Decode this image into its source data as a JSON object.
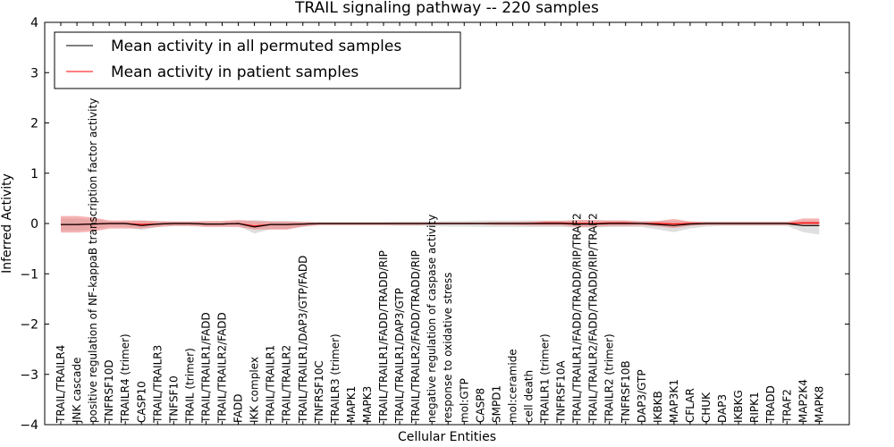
{
  "chart_data": {
    "type": "line",
    "title": "TRAIL signaling pathway -- 220 samples",
    "xlabel": "Cellular Entities",
    "ylabel": "Inferred Activity",
    "ylim": [
      -4,
      4
    ],
    "yticks": [
      "4",
      "3",
      "2",
      "1",
      "0",
      "−1",
      "−2",
      "−3",
      "−4"
    ],
    "grid": false,
    "legend_position": "top-left",
    "categories": [
      "TRAIL/TRAILR4",
      "JNK cascade",
      "positive regulation of NF-kappaB transcription factor activity",
      "TNFRSF10D",
      "TRAILR4 (trimer)",
      "CASP10",
      "TRAIL/TRAILR3",
      "TNFSF10",
      "TRAIL (trimer)",
      "TRAIL/TRAILR1/FADD",
      "TRAIL/TRAILR2/FADD",
      "FADD",
      "IKK complex",
      "TRAIL/TRAILR1",
      "TRAIL/TRAILR2",
      "TRAIL/TRAILR1/DAP3/GTP/FADD",
      "TNFRSF10C",
      "TRAILR3 (trimer)",
      "MAPK1",
      "MAPK3",
      "TRAIL/TRAILR1/FADD/TRADD/RIP",
      "TRAIL/TRAILR1/DAP3/GTP",
      "TRAIL/TRAILR2/FADD/TRADD/RIP",
      "negative regulation of caspase activity",
      "response to oxidative stress",
      "mol:GTP",
      "CASP8",
      "SMPD1",
      "mol:ceramide",
      "cell death",
      "TRAILR1 (trimer)",
      "TNFRSF10A",
      "TRAIL/TRAILR1/FADD/TRADD/RIP/TRAF2",
      "TRAIL/TRAILR2/FADD/TRADD/RIP/TRAF2",
      "TRAILR2 (trimer)",
      "TNFRSF10B",
      "DAP3/GTP",
      "IKBKB",
      "MAP3K1",
      "CFLAR",
      "CHUK",
      "DAP3",
      "IKBKG",
      "RIPK1",
      "TRADD",
      "TRAF2",
      "MAP2K4",
      "MAPK8"
    ],
    "series": [
      {
        "name": "Mean activity in all permuted samples",
        "color": "#000000",
        "values": [
          -0.02,
          -0.02,
          -0.01,
          0.0,
          0.0,
          -0.04,
          -0.01,
          0.0,
          0.0,
          -0.01,
          -0.01,
          0.0,
          -0.07,
          -0.02,
          -0.02,
          -0.01,
          0.0,
          0.0,
          0.0,
          0.0,
          0.0,
          0.0,
          0.0,
          0.0,
          0.0,
          0.0,
          0.0,
          0.0,
          0.0,
          0.0,
          0.0,
          0.0,
          -0.01,
          -0.01,
          0.0,
          0.0,
          0.0,
          -0.02,
          -0.04,
          -0.01,
          0.0,
          0.0,
          0.0,
          0.0,
          0.0,
          0.0,
          -0.04,
          -0.04
        ],
        "upper": [
          0.1,
          0.1,
          0.08,
          0.04,
          0.04,
          0.06,
          0.04,
          0.04,
          0.04,
          0.04,
          0.04,
          0.05,
          0.07,
          0.05,
          0.05,
          0.04,
          0.03,
          0.03,
          0.03,
          0.03,
          0.03,
          0.04,
          0.04,
          0.04,
          0.05,
          0.05,
          0.06,
          0.06,
          0.06,
          0.06,
          0.06,
          0.06,
          0.06,
          0.06,
          0.06,
          0.06,
          0.05,
          0.05,
          0.05,
          0.04,
          0.04,
          0.04,
          0.04,
          0.04,
          0.04,
          0.04,
          0.05,
          0.05
        ],
        "lower": [
          -0.14,
          -0.14,
          -0.12,
          -0.06,
          -0.06,
          -0.13,
          -0.07,
          -0.05,
          -0.05,
          -0.05,
          -0.05,
          -0.05,
          -0.2,
          -0.11,
          -0.11,
          -0.07,
          -0.04,
          -0.04,
          -0.04,
          -0.04,
          -0.04,
          -0.05,
          -0.05,
          -0.05,
          -0.06,
          -0.06,
          -0.07,
          -0.07,
          -0.07,
          -0.07,
          -0.07,
          -0.07,
          -0.08,
          -0.08,
          -0.07,
          -0.07,
          -0.07,
          -0.12,
          -0.17,
          -0.1,
          -0.06,
          -0.05,
          -0.05,
          -0.05,
          -0.05,
          -0.05,
          -0.17,
          -0.22
        ]
      },
      {
        "name": "Mean activity in patient samples",
        "color": "#ff0000",
        "band_color": "#f08080",
        "values": [
          -0.02,
          -0.02,
          -0.01,
          0.0,
          0.0,
          -0.02,
          -0.01,
          0.0,
          0.0,
          -0.01,
          -0.01,
          0.0,
          -0.05,
          -0.02,
          -0.02,
          -0.01,
          0.0,
          0.0,
          0.0,
          0.0,
          0.0,
          0.0,
          0.0,
          0.0,
          0.0,
          0.0,
          0.0,
          0.0,
          0.0,
          0.0,
          0.01,
          0.01,
          0.0,
          0.0,
          0.01,
          0.01,
          0.0,
          0.0,
          -0.01,
          0.0,
          0.0,
          0.0,
          0.0,
          0.0,
          0.0,
          0.0,
          0.01,
          0.01
        ],
        "upper": [
          0.15,
          0.15,
          0.12,
          0.06,
          0.06,
          0.06,
          0.05,
          0.04,
          0.04,
          0.05,
          0.05,
          0.07,
          0.05,
          0.04,
          0.04,
          0.03,
          0.02,
          0.02,
          0.02,
          0.02,
          0.02,
          0.02,
          0.02,
          0.02,
          0.02,
          0.02,
          0.02,
          0.03,
          0.03,
          0.04,
          0.05,
          0.05,
          0.07,
          0.07,
          0.06,
          0.06,
          0.04,
          0.05,
          0.09,
          0.04,
          0.03,
          0.03,
          0.03,
          0.03,
          0.03,
          0.03,
          0.1,
          0.1
        ],
        "lower": [
          -0.18,
          -0.18,
          -0.16,
          -0.1,
          -0.1,
          -0.1,
          -0.07,
          -0.05,
          -0.05,
          -0.07,
          -0.07,
          -0.07,
          -0.12,
          -0.12,
          -0.12,
          -0.06,
          -0.03,
          -0.03,
          -0.03,
          -0.03,
          -0.03,
          -0.03,
          -0.03,
          -0.02,
          -0.02,
          -0.02,
          -0.02,
          -0.03,
          -0.03,
          -0.04,
          -0.04,
          -0.04,
          -0.07,
          -0.07,
          -0.05,
          -0.05,
          -0.04,
          -0.06,
          -0.09,
          -0.05,
          -0.03,
          -0.03,
          -0.03,
          -0.03,
          -0.03,
          -0.03,
          -0.05,
          -0.05
        ]
      }
    ]
  }
}
